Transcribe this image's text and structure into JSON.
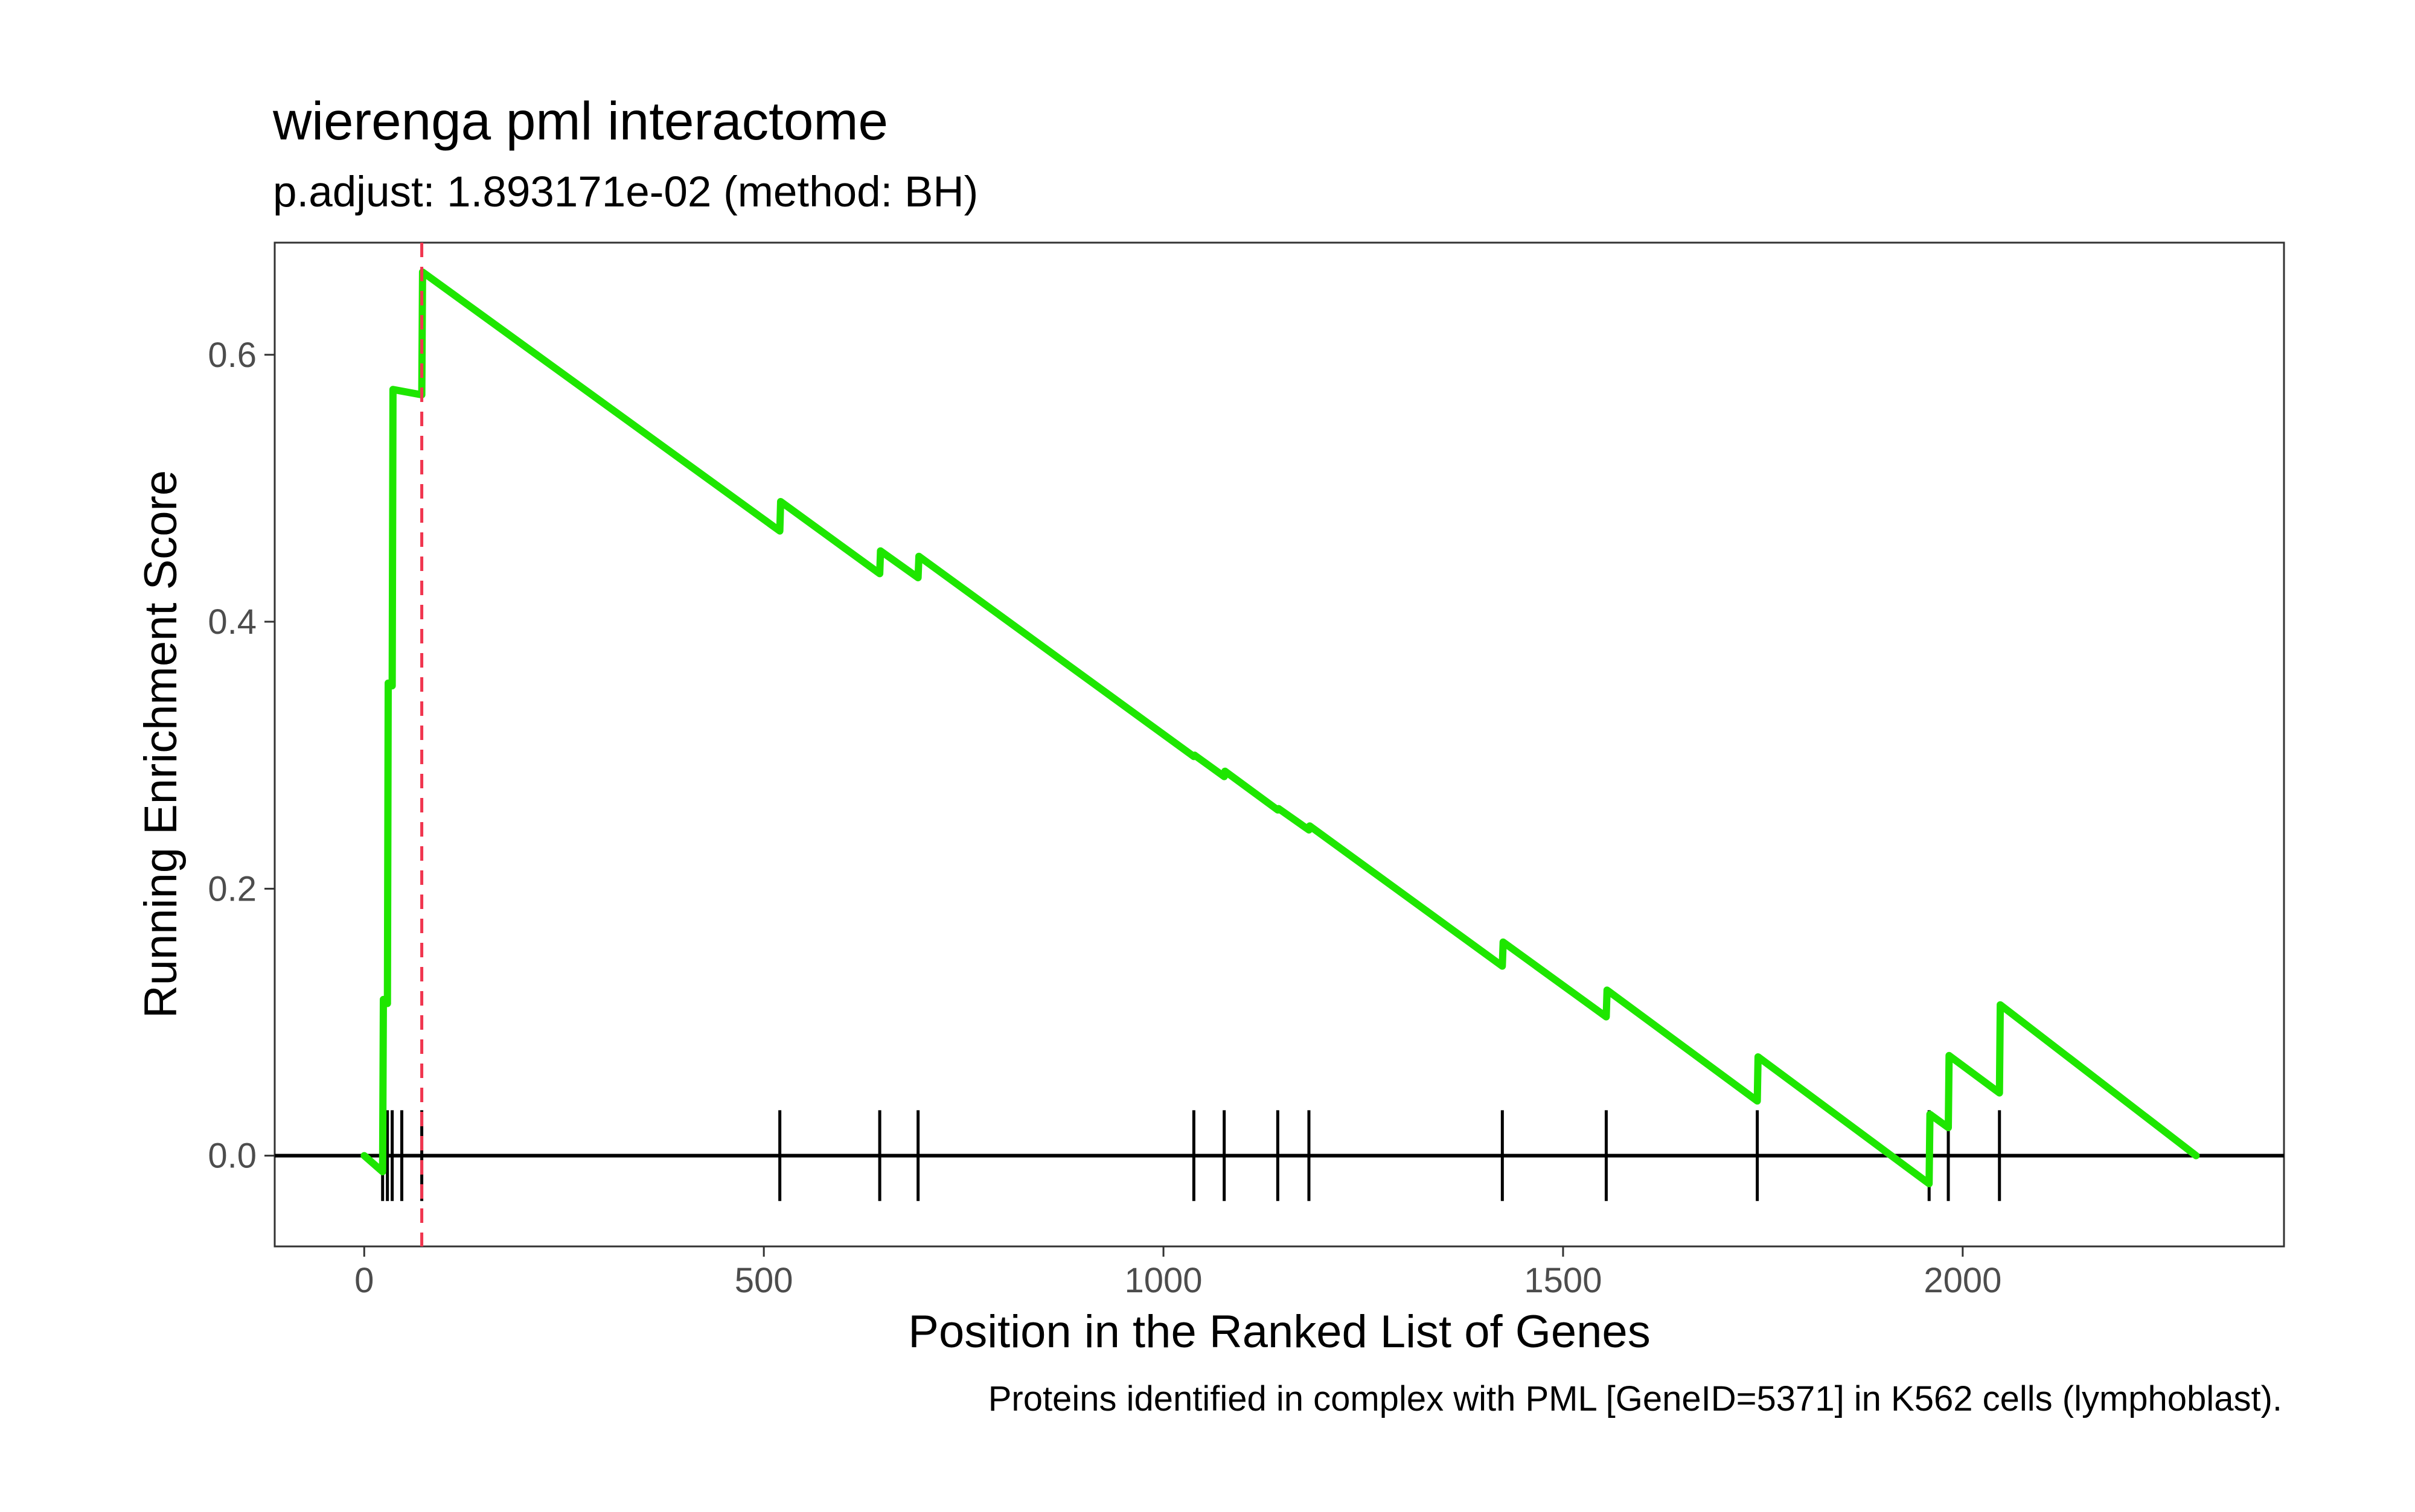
{
  "chart_data": {
    "type": "line",
    "title": "wierenga pml interactome",
    "subtitle": "p.adjust: 1.893171e-02 (method: BH)",
    "xlabel": "Position in the Ranked List of Genes",
    "ylabel": "Running Enrichment Score",
    "caption": "Proteins identified in complex with PML [GeneID=5371] in K562 cells (lymphoblast).",
    "xlim": [
      -112,
      2402
    ],
    "ylim": [
      -0.068,
      0.684
    ],
    "x_ticks": [
      0,
      500,
      1000,
      1500,
      2000
    ],
    "x_tick_labels": [
      "0",
      "500",
      "1000",
      "1500",
      "2000"
    ],
    "y_ticks": [
      0.0,
      0.2,
      0.4,
      0.6
    ],
    "y_tick_labels": [
      "0.0",
      "0.2",
      "0.4",
      "0.6"
    ],
    "grid": false,
    "running_score_color": "#1ee600",
    "peak_line_color": "#f0364f",
    "hit_mark_color": "#000000",
    "series": [
      {
        "x": [
          0,
          23,
          24,
          29,
          30,
          35,
          36,
          72,
          73,
          520,
          521,
          645,
          646,
          693,
          694,
          1038,
          1039,
          1076,
          1077,
          1143,
          1144,
          1182,
          1183,
          1424,
          1425,
          1554,
          1555,
          1743,
          1744,
          1958,
          1959,
          1982,
          1983,
          2046,
          2047,
          2292
        ],
        "y": [
          0.0,
          -0.012,
          0.117,
          0.114,
          0.354,
          0.352,
          0.574,
          0.57,
          0.662,
          0.468,
          0.49,
          0.436,
          0.453,
          0.433,
          0.449,
          0.299,
          0.3,
          0.284,
          0.288,
          0.259,
          0.26,
          0.244,
          0.247,
          0.142,
          0.16,
          0.104,
          0.124,
          0.041,
          0.074,
          -0.021,
          0.031,
          0.021,
          0.075,
          0.047,
          0.113,
          0.0
        ]
      }
    ],
    "hit_positions": [
      23,
      29,
      35,
      47,
      72,
      520,
      645,
      693,
      1038,
      1076,
      1143,
      1182,
      1424,
      1554,
      1743,
      1958,
      1982,
      2046
    ],
    "peak_position": 72
  }
}
